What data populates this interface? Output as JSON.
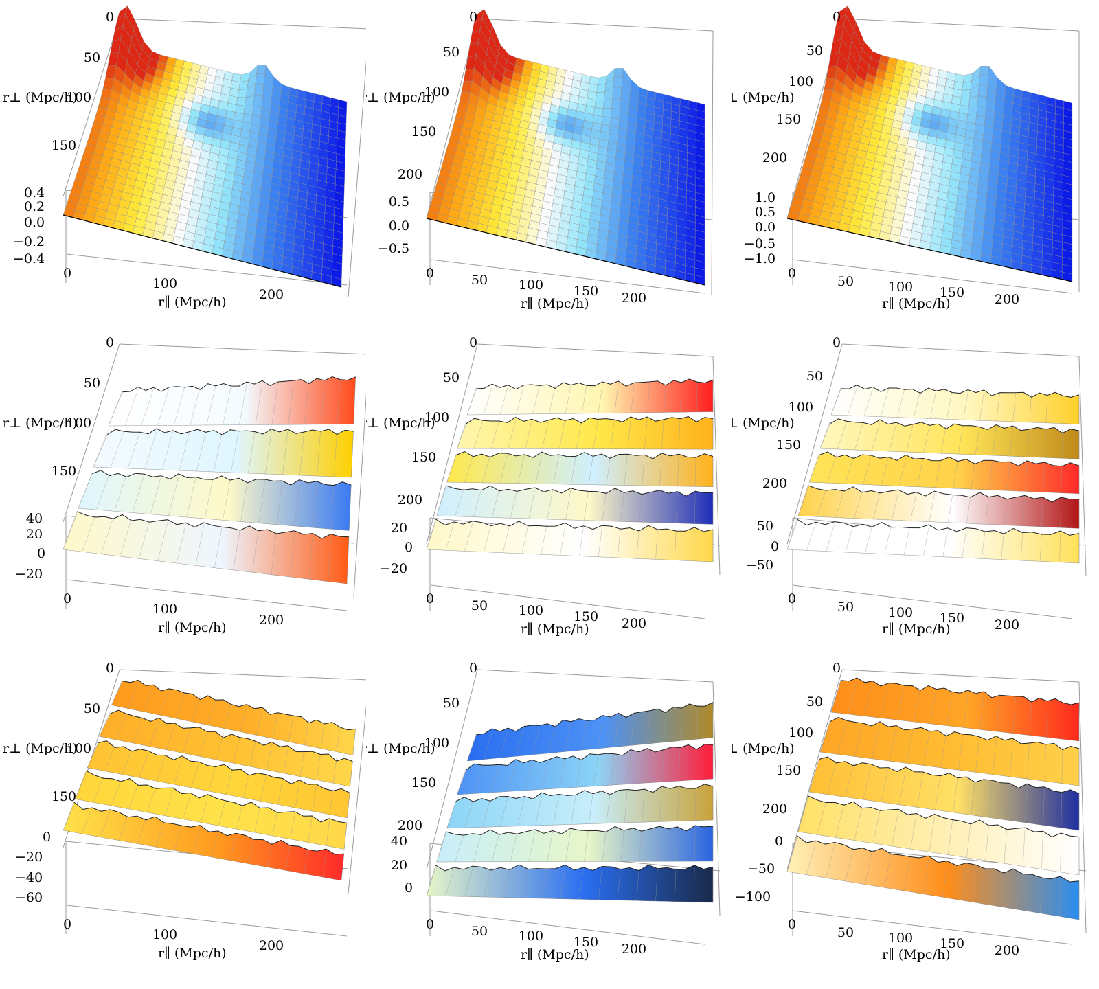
{
  "chart_data": [
    {
      "type": "surface3d",
      "row": 1,
      "col": 1,
      "xlabel": "r∥ (Mpc/h)",
      "ylabel": "r⊥ (Mpc/h)",
      "xticks": [
        "0",
        "100",
        "200"
      ],
      "yticks": [
        "0",
        "50",
        "100",
        "150"
      ],
      "zticks": [
        "0.4",
        "0.2",
        "0.0",
        "−0.2",
        "−0.4"
      ],
      "xlim": [
        0,
        250
      ],
      "ylim": [
        0,
        200
      ],
      "zlim": [
        -0.4,
        0.4
      ],
      "colormap": "red-yellow-white-blue",
      "surface": "smooth correlation function with a peak near small r⊥ and a BAO ridge near r∥≈110"
    },
    {
      "type": "surface3d",
      "row": 1,
      "col": 2,
      "xlabel": "r∥ (Mpc/h)",
      "ylabel": "r⊥ (Mpc/h)",
      "xticks": [
        "0",
        "50",
        "100",
        "150",
        "200"
      ],
      "yticks": [
        "0",
        "50",
        "100",
        "150",
        "200"
      ],
      "zticks": [
        "0.5",
        "0.0",
        "−0.5"
      ],
      "xlim": [
        0,
        240
      ],
      "ylim": [
        0,
        220
      ],
      "zlim": [
        -0.6,
        0.6
      ],
      "colormap": "red-yellow-white-blue",
      "surface": "smooth correlation function with a peak near small r⊥ and a BAO ridge"
    },
    {
      "type": "surface3d",
      "row": 1,
      "col": 3,
      "xlabel": "r∥ (Mpc/h)",
      "ylabel": "r⊥ (Mpc/h)",
      "xticks": [
        "0",
        "50",
        "100",
        "150",
        "200"
      ],
      "yticks": [
        "0",
        "50",
        "100",
        "150",
        "200"
      ],
      "zticks": [
        "1.0",
        "0.5",
        "0.0",
        "−0.5",
        "−1.0"
      ],
      "xlim": [
        0,
        240
      ],
      "ylim": [
        0,
        220
      ],
      "zlim": [
        -1.0,
        1.0
      ],
      "colormap": "red-yellow-white-blue",
      "surface": "smooth correlation function with a peak near small r⊥ and a BAO ridge"
    },
    {
      "type": "surface3d",
      "row": 2,
      "col": 1,
      "xlabel": "r∥ (Mpc/h)",
      "ylabel": "r⊥ (Mpc/h)",
      "xticks": [
        "0",
        "100",
        "200"
      ],
      "yticks": [
        "0",
        "50",
        "100",
        "150"
      ],
      "zticks": [
        "40",
        "20",
        "0",
        "−20"
      ],
      "xlim": [
        0,
        250
      ],
      "ylim": [
        0,
        200
      ],
      "zlim": [
        -20,
        40
      ],
      "colormap": "red-yellow-white-blue",
      "surface": "stepped noisy surface made of bands along r⊥"
    },
    {
      "type": "surface3d",
      "row": 2,
      "col": 2,
      "xlabel": "r∥ (Mpc/h)",
      "ylabel": "r⊥ (Mpc/h)",
      "xticks": [
        "0",
        "50",
        "100",
        "150",
        "200"
      ],
      "yticks": [
        "0",
        "50",
        "100",
        "150",
        "200"
      ],
      "zticks": [
        "20",
        "0",
        "−20"
      ],
      "xlim": [
        0,
        240
      ],
      "ylim": [
        0,
        220
      ],
      "zlim": [
        -20,
        30
      ],
      "colormap": "red-yellow-white-blue",
      "surface": "stepped noisy surface made of bands along r⊥"
    },
    {
      "type": "surface3d",
      "row": 2,
      "col": 3,
      "xlabel": "r∥ (Mpc/h)",
      "ylabel": "r⊥ (Mpc/h)",
      "xticks": [
        "0",
        "50",
        "100",
        "150",
        "200"
      ],
      "yticks": [
        "0",
        "50",
        "100",
        "150",
        "200"
      ],
      "zticks": [
        "50",
        "0",
        "−50"
      ],
      "xlim": [
        0,
        240
      ],
      "ylim": [
        0,
        220
      ],
      "zlim": [
        -60,
        70
      ],
      "colormap": "red-yellow-white-blue",
      "surface": "stepped noisy surface made of bands along r⊥"
    },
    {
      "type": "surface3d",
      "row": 3,
      "col": 1,
      "xlabel": "r∥ (Mpc/h)",
      "ylabel": "r⊥ (Mpc/h)",
      "xticks": [
        "0",
        "100",
        "200"
      ],
      "yticks": [
        "0",
        "50",
        "100",
        "150"
      ],
      "zticks": [
        "0",
        "−20",
        "−40",
        "−60"
      ],
      "xlim": [
        0,
        250
      ],
      "ylim": [
        0,
        200
      ],
      "zlim": [
        -60,
        10
      ],
      "colormap": "red-yellow-white-blue",
      "surface": "stepped noisy surface made of bands along r⊥"
    },
    {
      "type": "surface3d",
      "row": 3,
      "col": 2,
      "xlabel": "r∥ (Mpc/h)",
      "ylabel": "r⊥ (Mpc/h)",
      "xticks": [
        "0",
        "50",
        "100",
        "150",
        "200"
      ],
      "yticks": [
        "0",
        "50",
        "100",
        "150",
        "200"
      ],
      "zticks": [
        "40",
        "20",
        "0"
      ],
      "xlim": [
        0,
        240
      ],
      "ylim": [
        0,
        220
      ],
      "zlim": [
        0,
        45
      ],
      "colormap": "red-yellow-white-blue",
      "surface": "stepped noisy surface made of bands along r⊥"
    },
    {
      "type": "surface3d",
      "row": 3,
      "col": 3,
      "xlabel": "r∥ (Mpc/h)",
      "ylabel": "r⊥ (Mpc/h)",
      "xticks": [
        "0",
        "50",
        "100",
        "150",
        "200"
      ],
      "yticks": [
        "0",
        "50",
        "100",
        "150",
        "200"
      ],
      "zticks": [
        "0",
        "−50",
        "−100"
      ],
      "xlim": [
        0,
        240
      ],
      "ylim": [
        0,
        220
      ],
      "zlim": [
        -120,
        20
      ],
      "colormap": "red-yellow-white-blue",
      "surface": "stepped noisy surface made of bands along r⊥"
    }
  ]
}
